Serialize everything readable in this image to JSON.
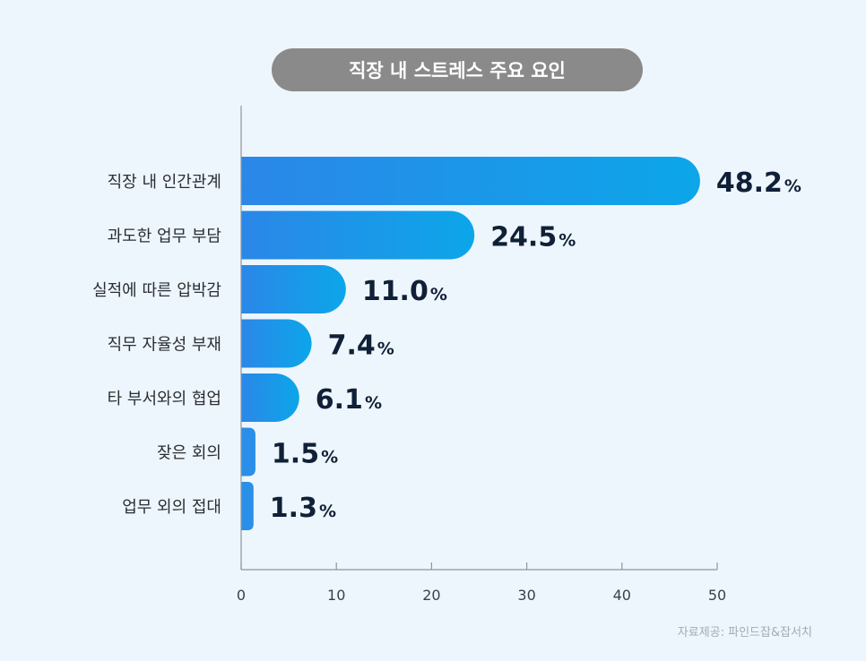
{
  "chart_data": {
    "type": "bar",
    "orientation": "horizontal",
    "title": "직장 내 스트레스 주요 요인",
    "categories": [
      "직장 내 인간관계",
      "과도한 업무 부담",
      "실적에 따른 압박감",
      "직무 자율성 부재",
      "타 부서와의 협업",
      "잦은 회의",
      "업무 외의 접대"
    ],
    "values": [
      48.2,
      24.5,
      11.0,
      7.4,
      6.1,
      1.5,
      1.3
    ],
    "value_labels": [
      "48.2",
      "24.5",
      "11.0",
      "7.4",
      "6.1",
      "1.5",
      "1.3"
    ],
    "unit": "%",
    "xlim": [
      0,
      50
    ],
    "xticks": [
      0,
      10,
      20,
      30,
      40,
      50
    ],
    "xlabel": "",
    "ylabel": "",
    "grid": false,
    "legend": "none",
    "colors": {
      "bar_start": "#2b87e8",
      "bar_end": "#0ca6e9",
      "bar_short": "#2a8fe8",
      "value_text": "#0f2037",
      "axis": "#8f959c",
      "category_text": "#2a2e33"
    }
  },
  "source_note": "자료제공: 파인드잡&잡서치"
}
